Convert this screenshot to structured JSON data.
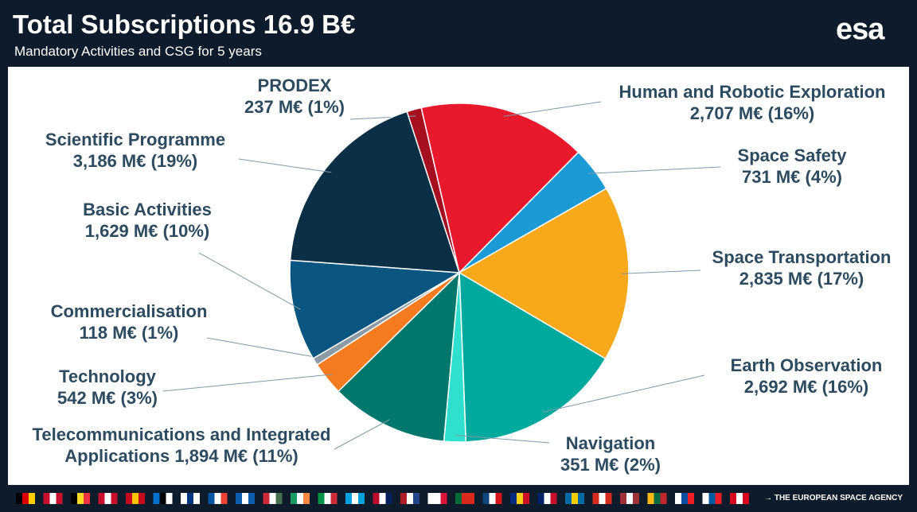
{
  "title": "Total Subscriptions 16.9 B€",
  "subtitle": "Mandatory Activities and CSG for 5 years",
  "logo": "esa",
  "footer": "→ THE EUROPEAN SPACE AGENCY",
  "chart_data": {
    "type": "pie",
    "categories": [
      "PRODEX",
      "Human and Robotic Exploration",
      "Space Safety",
      "Space Transportation",
      "Earth Observation",
      "Navigation",
      "Telecommunications and Integrated Applications",
      "Technology",
      "Commercialisation",
      "Basic Activities",
      "Scientific Programme"
    ],
    "values": [
      237,
      2707,
      731,
      2835,
      2692,
      351,
      1894,
      542,
      118,
      1629,
      3186
    ],
    "value_labels": [
      "237 M€  (1%)",
      "2,707 M€  (16%)",
      "731 M€  (4%)",
      "2,835 M€  (17%)",
      "2,692 M€  (16%)",
      "351 M€  (2%)",
      "1,894 M€  (11%)",
      "542 M€  (3%)",
      "118 M€  (1%)",
      "1,629 M€  (10%)",
      "3,186 M€  (19%)"
    ],
    "colors": [
      "#a50f20",
      "#e8192c",
      "#1b9ad6",
      "#f7a81b",
      "#00a99d",
      "#2fe0cf",
      "#00776b",
      "#f47b20",
      "#8c9aa5",
      "#0a5680",
      "#0b2f45"
    ]
  }
}
